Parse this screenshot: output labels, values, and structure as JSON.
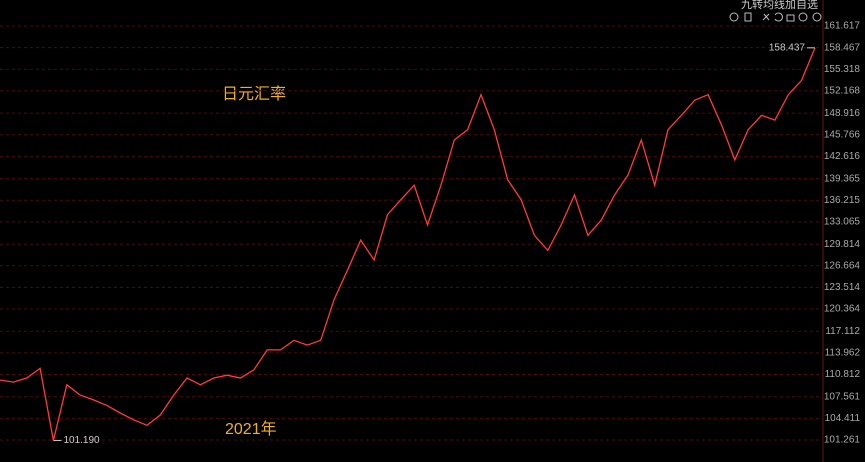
{
  "toolbar": {
    "items": [
      "九转",
      "均线",
      "加自选"
    ]
  },
  "chart_data": {
    "type": "line",
    "title": "日元汇率",
    "annotation": "2021年",
    "low_label": "101.190",
    "high_label": "158.437",
    "color": "#ff3b3b",
    "grid": true,
    "categories": [
      null,
      null,
      null,
      null,
      null,
      null,
      null,
      null,
      null,
      null,
      null,
      null,
      null,
      null,
      null,
      null,
      null,
      null,
      null,
      null,
      null,
      null,
      null,
      null,
      null,
      null,
      null,
      null,
      null,
      null,
      null,
      null,
      null,
      null,
      null,
      null,
      null,
      null,
      null,
      null,
      null,
      null,
      null,
      null,
      null,
      null,
      null,
      null,
      null,
      null,
      null,
      null,
      null,
      null,
      null,
      null,
      null,
      null,
      null,
      null,
      null,
      null
    ],
    "values": [
      110.0,
      109.7,
      110.3,
      111.7,
      101.19,
      109.3,
      107.8,
      107.1,
      106.3,
      105.2,
      104.2,
      103.4,
      104.9,
      107.8,
      110.3,
      109.3,
      110.3,
      110.7,
      110.3,
      111.5,
      114.4,
      114.4,
      115.8,
      115.1,
      115.8,
      121.7,
      126.0,
      130.4,
      127.5,
      134.1,
      136.3,
      138.4,
      132.6,
      138.4,
      145.0,
      146.5,
      151.6,
      146.5,
      139.2,
      136.3,
      131.1,
      128.9,
      132.6,
      137.0,
      131.1,
      133.3,
      137.0,
      139.9,
      145.0,
      138.4,
      146.5,
      148.6,
      150.8,
      151.6,
      147.2,
      142.1,
      146.5,
      148.6,
      147.9,
      151.6,
      153.7,
      158.437
    ],
    "ylim": [
      98.05,
      165.41
    ],
    "yticks": [
      161.617,
      158.467,
      155.318,
      152.168,
      148.916,
      145.766,
      142.616,
      139.365,
      136.215,
      133.065,
      129.814,
      126.664,
      123.514,
      120.364,
      117.112,
      113.962,
      110.812,
      107.561,
      104.411,
      101.261
    ]
  }
}
